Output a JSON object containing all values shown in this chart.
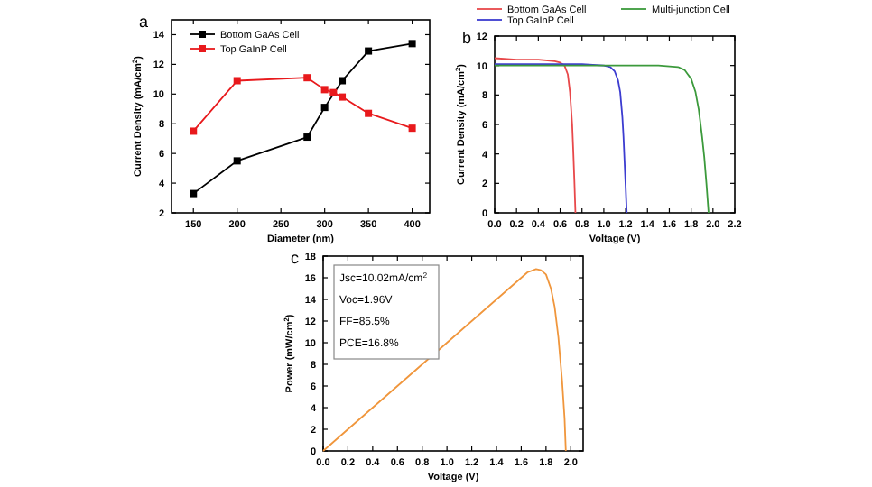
{
  "chart_data": [
    {
      "type": "line",
      "title": "a",
      "xlabel": "Diameter (nm)",
      "ylabel": "Current Density (mA/cm$^{2}$)",
      "xlim": [
        125,
        420
      ],
      "xticks": [
        150,
        200,
        250,
        300,
        350,
        400
      ],
      "ylim": [
        2,
        15
      ],
      "yticks": [
        2,
        4,
        6,
        8,
        10,
        12,
        14
      ],
      "marker": "square",
      "legend": "top left",
      "series": [
        {
          "name": "Bottom GaAs Cell",
          "color": "#000000",
          "x": [
            150,
            200,
            280,
            300,
            320,
            350,
            400
          ],
          "values": [
            3.3,
            5.5,
            7.1,
            9.1,
            10.9,
            12.9,
            13.4
          ]
        },
        {
          "name": "Top GaInP Cell",
          "color": "#e8191c",
          "x": [
            150,
            200,
            280,
            300,
            310,
            320,
            350,
            400
          ],
          "values": [
            7.5,
            10.9,
            11.1,
            10.3,
            10.1,
            9.8,
            8.7,
            7.7
          ]
        }
      ]
    },
    {
      "type": "line",
      "title": "b",
      "xlabel": "Voltage (V)",
      "ylabel": "Current Density (mA/cm$^{2}$)",
      "xlim": [
        0,
        2.2
      ],
      "xticks": [
        {
          "value": 0,
          "label": "0.0"
        },
        0.2,
        0.4,
        0.6,
        0.8,
        {
          "value": 1,
          "label": "1.0"
        },
        1.2,
        1.4,
        1.6,
        1.8,
        {
          "value": 2,
          "label": "2.0"
        },
        2.2
      ],
      "ylim": [
        0,
        12
      ],
      "yticks": [
        0,
        2,
        4,
        6,
        8,
        10,
        12
      ],
      "legend": "top",
      "series": [
        {
          "name": "Bottom GaAs Cell",
          "color": "#e8484a",
          "x": [
            0,
            0.2,
            0.4,
            0.55,
            0.6,
            0.64,
            0.67,
            0.69,
            0.71,
            0.72,
            0.73,
            0.74
          ],
          "values": [
            10.5,
            10.4,
            10.4,
            10.3,
            10.2,
            10.0,
            9.4,
            8.2,
            6,
            4.2,
            2.2,
            0
          ]
        },
        {
          "name": "Top GaInP Cell",
          "color": "#3c3cd0",
          "x": [
            0,
            0.4,
            0.8,
            1.0,
            1.06,
            1.1,
            1.13,
            1.15,
            1.17,
            1.18,
            1.19,
            1.2,
            1.21
          ],
          "values": [
            10.1,
            10.1,
            10.1,
            10.0,
            9.9,
            9.6,
            9.0,
            8.2,
            6.5,
            5.2,
            3.5,
            1.8,
            0
          ]
        },
        {
          "name": "Multi-junction Cell",
          "color": "#3c9a3c",
          "x": [
            0,
            0.5,
            1.0,
            1.5,
            1.68,
            1.74,
            1.8,
            1.84,
            1.87,
            1.9,
            1.92,
            1.94,
            1.96
          ],
          "values": [
            10.0,
            10.0,
            10.0,
            10.0,
            9.9,
            9.7,
            9.1,
            8.2,
            7.0,
            5.2,
            3.8,
            2.0,
            0
          ]
        }
      ]
    },
    {
      "type": "line",
      "title": "c",
      "xlabel": "Voltage (V)",
      "ylabel": "Power (mW/cm$^{2}$)",
      "xlim": [
        0,
        2.1
      ],
      "xticks": [
        {
          "value": 0,
          "label": "0.0"
        },
        0.2,
        0.4,
        0.6,
        0.8,
        {
          "value": 1,
          "label": "1.0"
        },
        1.2,
        1.4,
        1.6,
        1.8,
        {
          "value": 2,
          "label": "2.0"
        }
      ],
      "ylim": [
        0,
        18
      ],
      "yticks": [
        0,
        2,
        4,
        6,
        8,
        10,
        12,
        14,
        16,
        18
      ],
      "annotations": [
        "Jsc=10.02mA/cm$^{2}$",
        "Voc=1.96V",
        "FF=85.5%",
        "PCE=16.8%"
      ],
      "series": [
        {
          "color": "#f0963c",
          "x": [
            0,
            0.5,
            1.0,
            1.5,
            1.65,
            1.72,
            1.76,
            1.8,
            1.84,
            1.87,
            1.9,
            1.93,
            1.95,
            1.96
          ],
          "values": [
            0,
            5.0,
            10.0,
            15.0,
            16.5,
            16.8,
            16.7,
            16.3,
            15.0,
            13.3,
            10.5,
            6.5,
            3.0,
            0
          ]
        }
      ]
    }
  ]
}
